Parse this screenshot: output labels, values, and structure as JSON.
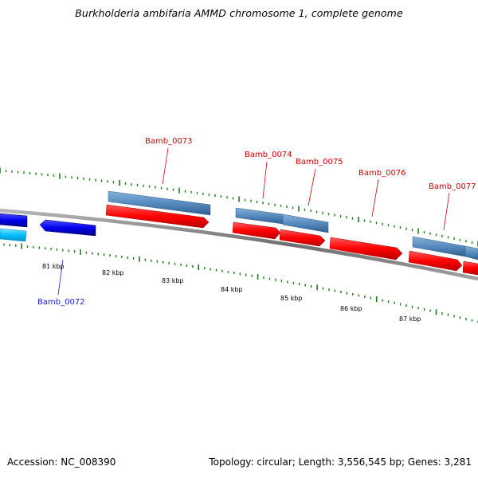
{
  "title": "Burkholderia ambifaria AMMD chromosome 1, complete genome",
  "footer": {
    "accession": "Accession: NC_008390",
    "stats": "Topology: circular; Length: 3,556,545 bp; Genes: 3,281"
  },
  "colors": {
    "backbone": "#8a8a8a",
    "tick": "#1a7a1a",
    "forward_cds": "#ff0000",
    "reverse_cds": "#0000ee",
    "forward_gene": "#4f84b8",
    "reverse_gene": "#00bfff",
    "forward_label": "#d40000",
    "reverse_label": "#1a1ad0"
  },
  "scale_labels": [
    "81 kbp",
    "82 kbp",
    "83 kbp",
    "84 kbp",
    "85 kbp",
    "86 kbp",
    "87 kbp"
  ],
  "gene_labels": [
    {
      "text": "Bamb_0072",
      "strand": "reverse"
    },
    {
      "text": "Bamb_0073",
      "strand": "forward"
    },
    {
      "text": "Bamb_0074",
      "strand": "forward"
    },
    {
      "text": "Bamb_0075",
      "strand": "forward"
    },
    {
      "text": "Bamb_0076",
      "strand": "forward"
    },
    {
      "text": "Bamb_0077",
      "strand": "forward"
    }
  ]
}
